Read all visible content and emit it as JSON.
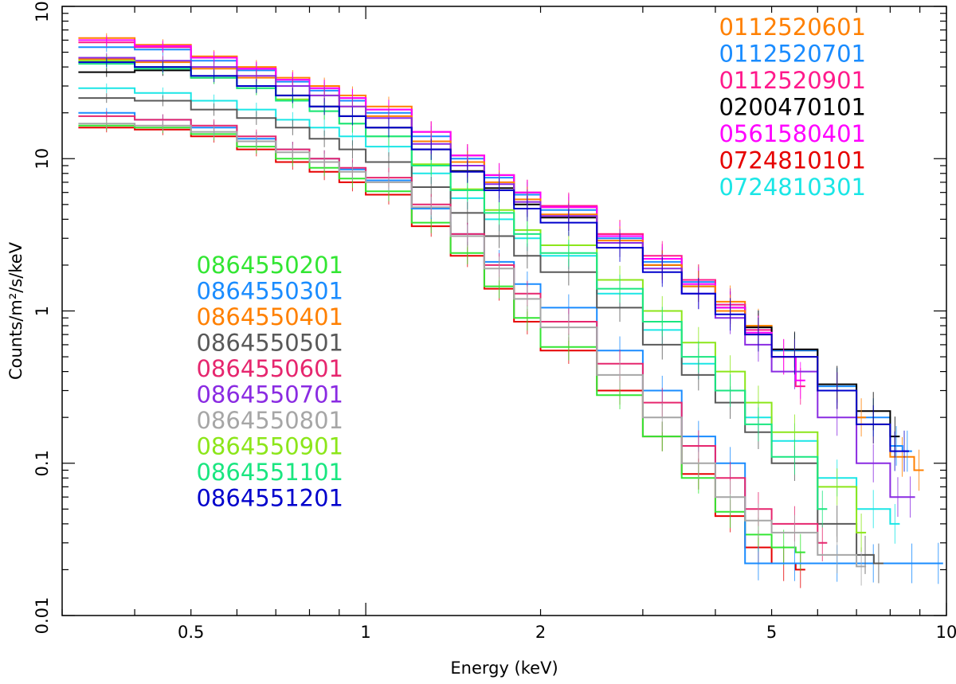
{
  "chart_data": {
    "type": "line",
    "title": "",
    "xlabel": "Energy (keV)",
    "ylabel": "Counts/m²/s/keV",
    "xscale": "log",
    "yscale": "log",
    "xlim": [
      0.3,
      10
    ],
    "ylim": [
      0.01,
      100
    ],
    "x_ticks": [
      {
        "value": 0.5,
        "label": "0.5"
      },
      {
        "value": 1,
        "label": "1"
      },
      {
        "value": 2,
        "label": "2"
      },
      {
        "value": 5,
        "label": "5"
      },
      {
        "value": 10,
        "label": "10"
      }
    ],
    "y_ticks": [
      {
        "value": 0.01,
        "label": "0.01"
      },
      {
        "value": 0.1,
        "label": "0.1"
      },
      {
        "value": 1,
        "label": "1"
      },
      {
        "value": 10,
        "label": "10"
      },
      {
        "value": 100,
        "label": "100"
      }
    ],
    "legend_position": "top-right and middle-left (two groups)",
    "note": "Approximate values read from the plotted step spectra with error bars.",
    "series": [
      {
        "name": "0112520601",
        "color": "#ff8000",
        "legend_group": "top-right",
        "x": [
          0.32,
          0.4,
          0.5,
          0.6,
          0.7,
          0.8,
          0.9,
          1.0,
          1.2,
          1.4,
          1.6,
          1.8,
          2.0,
          2.5,
          3.0,
          3.5,
          4.0,
          4.5,
          5.0,
          6.0,
          7.0,
          8.0,
          8.8
        ],
        "y": [
          62,
          56,
          47,
          40,
          34,
          30,
          26,
          22,
          15,
          10.5,
          7.8,
          6.0,
          4.8,
          3.2,
          2.2,
          1.6,
          1.15,
          0.8,
          0.55,
          0.3,
          0.18,
          0.11,
          0.09
        ]
      },
      {
        "name": "0112520701",
        "color": "#1a8cff",
        "legend_group": "top-right",
        "x": [
          0.32,
          0.4,
          0.5,
          0.6,
          0.7,
          0.8,
          0.9,
          1.0,
          1.2,
          1.4,
          1.6,
          1.8,
          2.0,
          2.5,
          3.0,
          3.5,
          4.0,
          4.5,
          5.0,
          6.0,
          7.0,
          8.0,
          8.4
        ],
        "y": [
          54,
          52,
          44,
          38,
          32,
          28,
          24,
          20,
          14,
          10,
          7.5,
          5.8,
          4.6,
          3.0,
          2.1,
          1.55,
          1.1,
          0.78,
          0.55,
          0.32,
          0.2,
          0.13,
          0.12
        ]
      },
      {
        "name": "0112520901",
        "color": "#ff1a8c",
        "legend_group": "top-right",
        "x": [
          0.32,
          0.4,
          0.5,
          0.6,
          0.7,
          0.8,
          0.9,
          1.0,
          1.2,
          1.4,
          1.6,
          1.8,
          2.0,
          2.5,
          3.0,
          3.5,
          4.0,
          4.5,
          5.0,
          5.5
        ],
        "y": [
          58,
          54,
          46,
          39,
          33,
          29,
          25,
          21,
          15,
          10.5,
          7.8,
          6.0,
          4.9,
          3.2,
          2.3,
          1.6,
          1.1,
          0.75,
          0.5,
          0.32
        ]
      },
      {
        "name": "0200470101",
        "color": "#000000",
        "legend_group": "top-right",
        "x": [
          0.32,
          0.4,
          0.5,
          0.6,
          0.7,
          0.8,
          0.9,
          1.0,
          1.2,
          1.4,
          1.6,
          1.8,
          2.0,
          2.5,
          3.0,
          3.5,
          4.0,
          4.5,
          5.0,
          6.0,
          7.0,
          8.0
        ],
        "y": [
          37,
          38,
          34,
          30,
          26,
          22,
          19,
          16,
          11.5,
          8.3,
          6.4,
          5.0,
          4.1,
          2.8,
          2.0,
          1.45,
          1.05,
          0.78,
          0.56,
          0.33,
          0.22,
          0.15
        ]
      },
      {
        "name": "0561580401",
        "color": "#ff00ff",
        "legend_group": "top-right",
        "x": [
          0.32,
          0.4,
          0.5,
          0.6,
          0.7,
          0.8,
          0.9,
          1.0,
          1.2,
          1.4,
          1.6,
          1.8,
          2.0,
          2.5,
          3.0,
          3.5,
          4.0,
          4.5,
          5.0,
          5.5
        ],
        "y": [
          60,
          55,
          46,
          39,
          33,
          29,
          25,
          21,
          15,
          10.5,
          7.8,
          6.0,
          4.8,
          3.1,
          2.2,
          1.5,
          1.05,
          0.72,
          0.5,
          0.35
        ]
      },
      {
        "name": "0724810101",
        "color": "#e60000",
        "legend_group": "top-right",
        "x": [
          0.32,
          0.4,
          0.5,
          0.6,
          0.7,
          0.8,
          0.9,
          1.0,
          1.2,
          1.4,
          1.6,
          1.8,
          2.0,
          2.5,
          3.0,
          3.5,
          4.0,
          4.5,
          5.0,
          5.5
        ],
        "y": [
          16,
          15.5,
          14,
          11.5,
          9.5,
          8.2,
          7.0,
          5.8,
          3.6,
          2.3,
          1.4,
          0.85,
          0.55,
          0.3,
          0.15,
          0.085,
          0.045,
          0.028,
          0.022,
          0.02
        ]
      },
      {
        "name": "0724810301",
        "color": "#1ae6e6",
        "legend_group": "top-right",
        "x": [
          0.32,
          0.4,
          0.5,
          0.6,
          0.7,
          0.8,
          0.9,
          1.0,
          1.2,
          1.4,
          1.6,
          1.8,
          2.0,
          2.5,
          3.0,
          3.5,
          4.0,
          4.5,
          5.0,
          6.0,
          7.0,
          8.0
        ],
        "y": [
          29,
          27,
          24,
          21,
          18,
          16,
          14,
          12,
          8.0,
          5.5,
          4.0,
          3.0,
          2.3,
          1.3,
          0.75,
          0.45,
          0.3,
          0.2,
          0.14,
          0.08,
          0.05,
          0.04
        ]
      },
      {
        "name": "0864550201",
        "color": "#33e633",
        "legend_group": "middle-left",
        "x": [
          0.32,
          0.4,
          0.5,
          0.6,
          0.7,
          0.8,
          0.9,
          1.0,
          1.2,
          1.4,
          1.6,
          1.8,
          2.0,
          2.5,
          3.0,
          3.5,
          4.0,
          4.5,
          5.0,
          5.5
        ],
        "y": [
          16.5,
          16,
          14.5,
          12,
          10,
          8.7,
          7.4,
          6.1,
          3.8,
          2.4,
          1.45,
          0.9,
          0.58,
          0.28,
          0.15,
          0.08,
          0.048,
          0.034,
          0.028,
          0.026
        ]
      },
      {
        "name": "0864550301",
        "color": "#1a8cff",
        "legend_group": "middle-left",
        "x": [
          0.32,
          0.4,
          0.5,
          0.6,
          0.7,
          0.8,
          0.9,
          1.0,
          1.2,
          1.4,
          1.6,
          1.8,
          2.0,
          2.5,
          3.0,
          3.5,
          4.0,
          4.5,
          5.0,
          6.0,
          7.0,
          8.0,
          9.5
        ],
        "y": [
          20,
          18,
          16,
          13.5,
          11.5,
          10,
          8.5,
          7.2,
          4.7,
          3.2,
          2.1,
          1.5,
          1.05,
          0.55,
          0.3,
          0.15,
          0.1,
          0.022,
          0.022,
          0.022,
          0.022,
          0.022,
          0.022
        ]
      },
      {
        "name": "0864550401",
        "color": "#ff8000",
        "legend_group": "middle-left",
        "x": [
          0.32,
          0.4,
          0.5,
          0.6,
          0.7,
          0.8,
          0.9,
          1.0,
          1.2,
          1.4,
          1.6,
          1.8,
          2.0,
          2.5,
          3.0,
          3.5,
          4.0,
          4.5,
          5.0,
          6.0,
          7.0
        ],
        "y": [
          45,
          43,
          39,
          34,
          30,
          26,
          22,
          19,
          13,
          9.5,
          7.0,
          5.4,
          4.3,
          2.9,
          2.0,
          1.45,
          1.0,
          0.7,
          0.5,
          0.3,
          0.2
        ]
      },
      {
        "name": "0864550501",
        "color": "#595959",
        "legend_group": "middle-left",
        "x": [
          0.32,
          0.4,
          0.5,
          0.6,
          0.7,
          0.8,
          0.9,
          1.0,
          1.2,
          1.4,
          1.6,
          1.8,
          2.0,
          2.5,
          3.0,
          3.5,
          4.0,
          4.5,
          5.0,
          6.0,
          7.0,
          7.5
        ],
        "y": [
          25,
          24,
          21,
          18.5,
          16,
          13.5,
          11.5,
          9.5,
          6.5,
          4.4,
          3.1,
          2.3,
          1.8,
          1.05,
          0.6,
          0.38,
          0.25,
          0.16,
          0.1,
          0.04,
          0.025,
          0.022
        ]
      },
      {
        "name": "0864550601",
        "color": "#e6266e",
        "legend_group": "middle-left",
        "x": [
          0.32,
          0.4,
          0.5,
          0.6,
          0.7,
          0.8,
          0.9,
          1.0,
          1.2,
          1.4,
          1.6,
          1.8,
          2.0,
          2.5,
          3.0,
          3.5,
          4.0,
          4.5,
          5.0,
          6.0
        ],
        "y": [
          19,
          18,
          16.5,
          14,
          11.5,
          10,
          8.7,
          7.5,
          5.0,
          3.2,
          2.0,
          1.3,
          0.85,
          0.45,
          0.25,
          0.13,
          0.08,
          0.05,
          0.04,
          0.03
        ]
      },
      {
        "name": "0864550701",
        "color": "#8a2be2",
        "legend_group": "middle-left",
        "x": [
          0.32,
          0.4,
          0.5,
          0.6,
          0.7,
          0.8,
          0.9,
          1.0,
          1.2,
          1.4,
          1.6,
          1.8,
          2.0,
          2.5,
          3.0,
          3.5,
          4.0,
          4.5,
          5.0,
          6.0,
          7.0,
          8.0,
          8.5
        ],
        "y": [
          46,
          44,
          40,
          35,
          30,
          26,
          22,
          18.5,
          12.5,
          9.0,
          6.8,
          5.2,
          4.2,
          2.8,
          1.9,
          1.3,
          0.9,
          0.6,
          0.4,
          0.2,
          0.1,
          0.06,
          0.06
        ]
      },
      {
        "name": "0864550801",
        "color": "#a6a6a6",
        "legend_group": "middle-left",
        "x": [
          0.32,
          0.4,
          0.5,
          0.6,
          0.7,
          0.8,
          0.9,
          1.0,
          1.2,
          1.4,
          1.6,
          1.8,
          2.0,
          2.5,
          3.0,
          3.5,
          4.0,
          4.5,
          5.0,
          6.0,
          7.0
        ],
        "y": [
          17,
          16.5,
          15,
          13,
          11,
          9.5,
          8.2,
          7.0,
          4.8,
          3.1,
          1.9,
          1.2,
          0.78,
          0.38,
          0.2,
          0.1,
          0.06,
          0.042,
          0.035,
          0.025,
          0.021
        ]
      },
      {
        "name": "0864550901",
        "color": "#8ce61a",
        "legend_group": "middle-left",
        "x": [
          0.32,
          0.4,
          0.5,
          0.6,
          0.7,
          0.8,
          0.9,
          1.0,
          1.2,
          1.4,
          1.6,
          1.8,
          2.0,
          2.5,
          3.0,
          3.5,
          4.0,
          4.5,
          5.0,
          6.0,
          7.0
        ],
        "y": [
          44,
          40,
          34,
          29,
          24.5,
          20.5,
          17,
          14,
          9.2,
          6.3,
          4.6,
          3.4,
          2.7,
          1.6,
          1.0,
          0.62,
          0.4,
          0.25,
          0.16,
          0.07,
          0.035
        ]
      },
      {
        "name": "0864551101",
        "color": "#1ae680",
        "legend_group": "middle-left",
        "x": [
          0.32,
          0.4,
          0.5,
          0.6,
          0.7,
          0.8,
          0.9,
          1.0,
          1.2,
          1.4,
          1.6,
          1.8,
          2.0,
          2.5,
          3.0,
          3.5,
          4.0,
          4.5,
          5.0,
          6.0
        ],
        "y": [
          42,
          39,
          34,
          29,
          24,
          20.5,
          17,
          14,
          9.0,
          6.2,
          4.4,
          3.2,
          2.4,
          1.4,
          0.85,
          0.5,
          0.3,
          0.18,
          0.11,
          0.05
        ]
      },
      {
        "name": "0864551201",
        "color": "#0000cc",
        "legend_group": "middle-left",
        "x": [
          0.32,
          0.4,
          0.5,
          0.6,
          0.7,
          0.8,
          0.9,
          1.0,
          1.2,
          1.4,
          1.6,
          1.8,
          2.0,
          2.5,
          3.0,
          3.5,
          4.0,
          4.5,
          5.0,
          6.0,
          7.0,
          8.0,
          8.3
        ],
        "y": [
          43,
          40,
          35,
          30,
          26,
          22,
          19,
          16,
          11.5,
          8.2,
          6.2,
          4.7,
          3.8,
          2.6,
          1.8,
          1.3,
          0.95,
          0.7,
          0.5,
          0.3,
          0.18,
          0.12,
          0.12
        ]
      }
    ]
  }
}
